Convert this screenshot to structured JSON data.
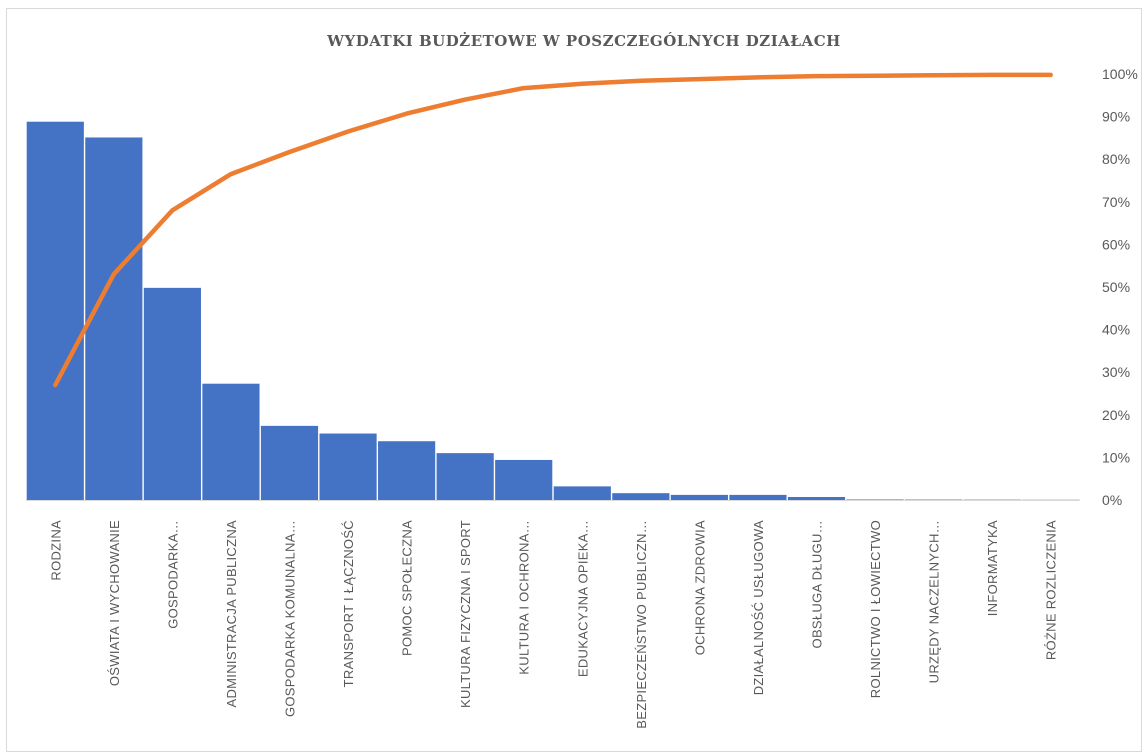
{
  "chart_data": {
    "type": "bar",
    "title": "WYDATKI BUDŻETOWE W POSZCZEGÓLNYCH DZIAŁACH",
    "categories": [
      "RODZINA",
      "OŚWIATA I WYCHOWANIE",
      "GOSPODARKA…",
      "ADMINISTRACJA PUBLICZNA",
      "GOSPODARKA KOMUNALNA…",
      "TRANSPORT I ŁĄCZNOŚĆ",
      "POMOC SPOŁECZNA",
      "KULTURA FIZYCZNA I SPORT",
      "KULTURA I OCHRONA…",
      "EDUKACYJNA OPIEKA…",
      "BEZPIECZEŃSTWO PUBLICZN…",
      "OCHRONA ZDROWIA",
      "DZIAŁALNOŚĆ USŁUGOWA",
      "OBSŁUGA DŁUGU…",
      "ROLNICTWO I ŁOWIECTWO",
      "URZĘDY NACZELNYCH…",
      "INFORMATYKA",
      "RÓŻNE ROZLICZENIA"
    ],
    "bar_values_pct_of_axis": [
      88.8,
      85.1,
      49.8,
      27.3,
      17.4,
      15.6,
      13.8,
      11.0,
      9.4,
      3.2,
      1.6,
      1.2,
      1.2,
      0.7,
      0.12,
      0.1,
      0.08,
      0.05
    ],
    "cumulative_pct": [
      27,
      53,
      68,
      76.5,
      81.7,
      86.5,
      90.7,
      94,
      96.7,
      97.7,
      98.4,
      98.8,
      99.2,
      99.5,
      99.6,
      99.7,
      99.8,
      99.8
    ],
    "y2_ticks": [
      "0%",
      "10%",
      "20%",
      "30%",
      "40%",
      "50%",
      "60%",
      "70%",
      "80%",
      "90%",
      "100%"
    ],
    "y2lim": [
      0,
      100
    ],
    "colors": {
      "bars": "#4472c4",
      "line": "#ed7d31",
      "axis": "#d9d9d9"
    },
    "legend": "none",
    "grid": false
  }
}
